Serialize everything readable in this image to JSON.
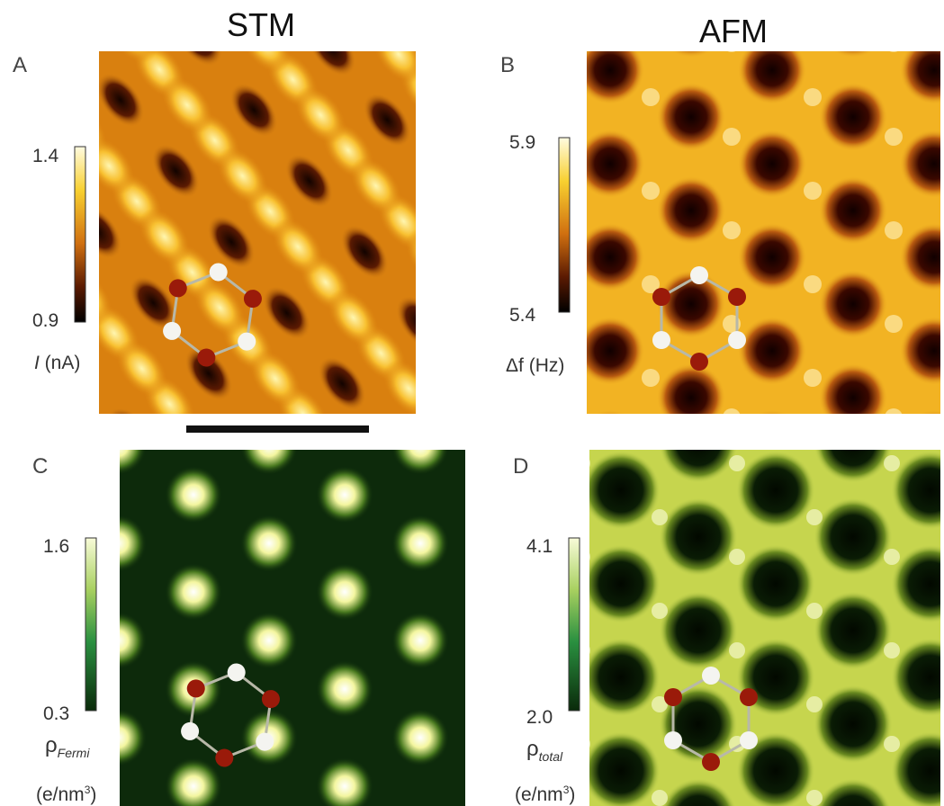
{
  "columns": [
    {
      "title": "STM"
    },
    {
      "title": "AFM"
    }
  ],
  "panels": [
    {
      "label": "A",
      "colorbar": {
        "max": "1.4",
        "min": "0.9",
        "symbol": "I",
        "unit": " (nA)"
      }
    },
    {
      "label": "B",
      "colorbar": {
        "max": "5.9",
        "min": "5.4",
        "symbol": "Δf",
        "unit": " (Hz)"
      }
    },
    {
      "label": "C",
      "colorbar": {
        "max": "1.6",
        "min": "0.3",
        "symbol": "ρ",
        "subscript": "Fermi",
        "unit": "(e/nm",
        "superscript": "3",
        "unit_end": ")"
      }
    },
    {
      "label": "D",
      "colorbar": {
        "max": "4.1",
        "min": "2.0",
        "symbol": "ρ",
        "subscript": "total",
        "unit": "(e/nm",
        "superscript": "3",
        "unit_end": ")"
      }
    }
  ]
}
